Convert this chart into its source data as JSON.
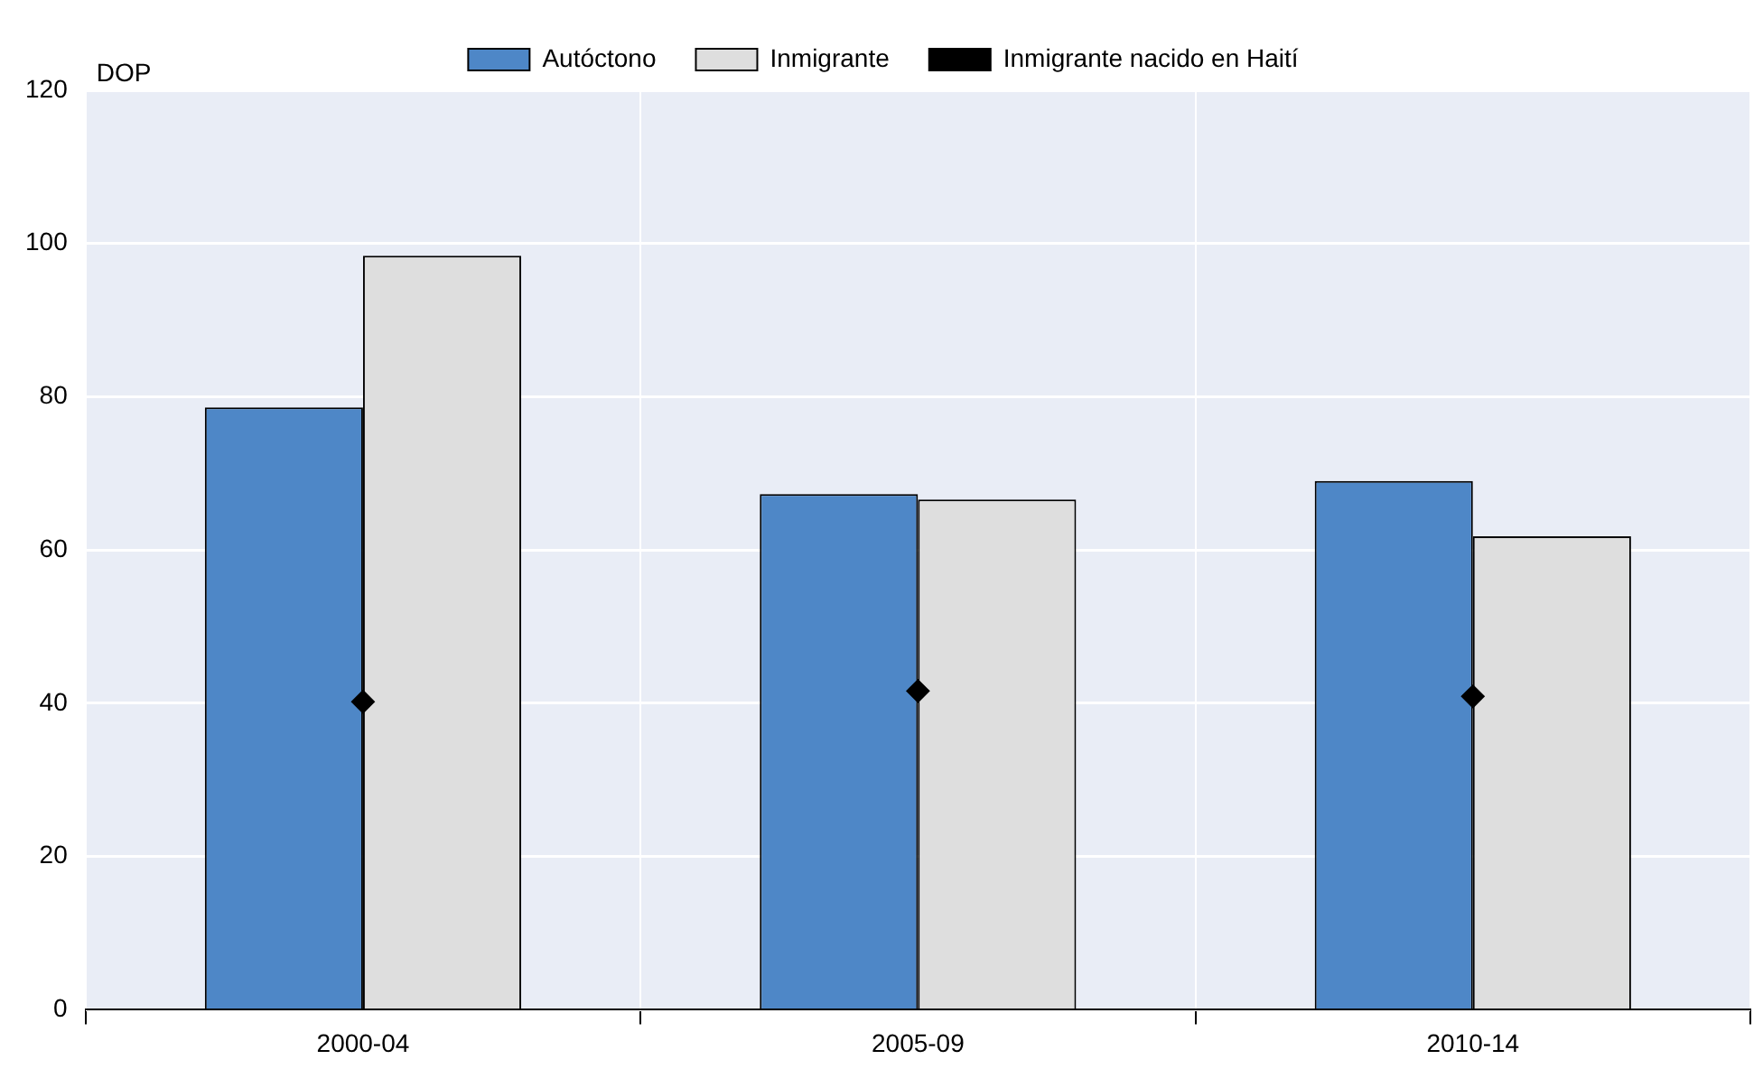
{
  "chart_data": {
    "type": "bar",
    "ylabel": "DOP",
    "categories": [
      "2000-04",
      "2005-09",
      "2010-14"
    ],
    "series": [
      {
        "name": "Autóctono",
        "color": "#4e87c7",
        "values": [
          78.6,
          67.3,
          69.0
        ]
      },
      {
        "name": "Inmigrante",
        "color": "#dedede",
        "values": [
          98.4,
          66.6,
          61.8
        ]
      },
      {
        "name": "Inmigrante nacido en Haití",
        "type": "scatter",
        "color": "#000000",
        "values": [
          40.2,
          41.6,
          40.9
        ]
      }
    ],
    "ylim": [
      0,
      120
    ],
    "yticks": [
      0,
      20,
      40,
      60,
      80,
      100,
      120
    ],
    "grid": true,
    "legend": "top",
    "marker": "diamond"
  }
}
